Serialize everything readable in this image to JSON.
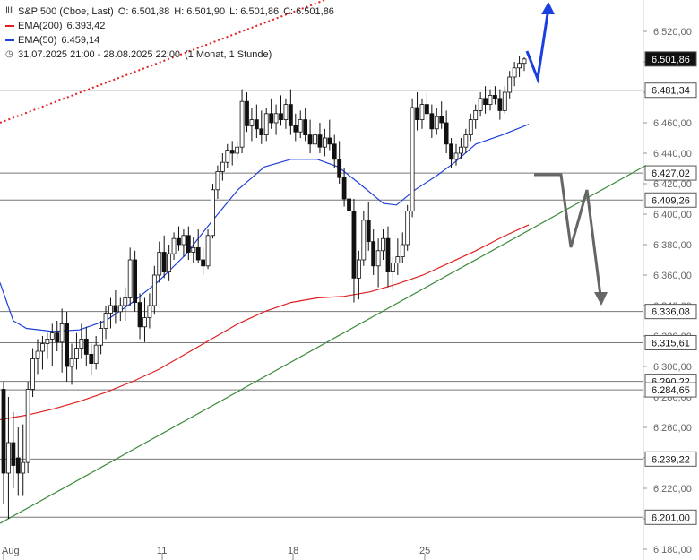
{
  "chart_data": {
    "type": "candlestick",
    "title": "S&P 500 (Cboe, Last)",
    "ohlc_header": {
      "open_label": "O:",
      "open": "6.501,88",
      "high_label": "H:",
      "high": "6.501,90",
      "low_label": "L:",
      "low": "6.501,86",
      "close_label": "C:",
      "close": "6.501,86"
    },
    "indicators": [
      {
        "name": "EMA(200)",
        "value": "6.393,42",
        "color": "#e02020"
      },
      {
        "name": "EMA(50)",
        "value": "6.459,14",
        "color": "#2040d8"
      }
    ],
    "range_label": "31.07.2025 21:00 - 28.08.2025 22:00",
    "interval_label": "(1 Monat, 1 Stunde)",
    "ylim": [
      6180,
      6540
    ],
    "y_ticks": [
      "6.520,00",
      "6.500,00",
      "6.480,00",
      "6.460,00",
      "6.440,00",
      "6.420,00",
      "6.400,00",
      "6.380,00",
      "6.360,00",
      "6.340,00",
      "6.320,00",
      "6.300,00",
      "6.280,00",
      "6.260,00",
      "6.240,00",
      "6.220,00",
      "6.200,00",
      "6.180,00"
    ],
    "y_tick_values": [
      6520,
      6500,
      6480,
      6460,
      6440,
      6420,
      6400,
      6380,
      6360,
      6340,
      6320,
      6300,
      6280,
      6260,
      6240,
      6220,
      6200,
      6180
    ],
    "x_ticks": [
      {
        "label": "Aug",
        "x": 0
      },
      {
        "label": "11",
        "x": 62
      },
      {
        "label": "18",
        "x": 112
      },
      {
        "label": "25",
        "x": 162
      }
    ],
    "levels": [
      {
        "label": "6.501,86",
        "value": 6501.86,
        "line": false,
        "dark": true
      },
      {
        "label": "6.481,34",
        "value": 6481.34,
        "line": true
      },
      {
        "label": "6.427,02",
        "value": 6427.02,
        "line": true
      },
      {
        "label": "6.409,26",
        "value": 6409.26,
        "line": true
      },
      {
        "label": "6.336,08",
        "value": 6336.08,
        "line": true
      },
      {
        "label": "6.315,61",
        "value": 6315.61,
        "line": true
      },
      {
        "label": "6.290,22",
        "value": 6290.22,
        "line": true
      },
      {
        "label": "6.284,65",
        "value": 6284.65,
        "line": true
      },
      {
        "label": "6.239,22",
        "value": 6239.22,
        "line": true
      },
      {
        "label": "6.201,00",
        "value": 6201,
        "line": true
      }
    ],
    "trendlines": [
      {
        "name": "support",
        "color": "#3a8a3a",
        "dashed": false,
        "points": [
          [
            0,
            6197
          ],
          [
            245,
            6432
          ]
        ]
      },
      {
        "name": "resistance",
        "color": "#e02020",
        "dashed": true,
        "points": [
          [
            0,
            6460
          ],
          [
            130,
            6545
          ]
        ]
      }
    ],
    "ema200": [
      [
        0,
        6265
      ],
      [
        10,
        6268
      ],
      [
        20,
        6272
      ],
      [
        30,
        6277
      ],
      [
        40,
        6283
      ],
      [
        50,
        6290
      ],
      [
        60,
        6298
      ],
      [
        70,
        6308
      ],
      [
        80,
        6318
      ],
      [
        90,
        6328
      ],
      [
        100,
        6336
      ],
      [
        110,
        6342
      ],
      [
        120,
        6345
      ],
      [
        130,
        6346
      ],
      [
        140,
        6349
      ],
      [
        150,
        6354
      ],
      [
        160,
        6360
      ],
      [
        170,
        6368
      ],
      [
        180,
        6376
      ],
      [
        190,
        6385
      ],
      [
        200,
        6393
      ]
    ],
    "ema50": [
      [
        0,
        6355
      ],
      [
        5,
        6330
      ],
      [
        10,
        6325
      ],
      [
        20,
        6323
      ],
      [
        30,
        6324
      ],
      [
        40,
        6330
      ],
      [
        50,
        6342
      ],
      [
        60,
        6356
      ],
      [
        70,
        6373
      ],
      [
        80,
        6395
      ],
      [
        90,
        6416
      ],
      [
        100,
        6431
      ],
      [
        110,
        6436
      ],
      [
        120,
        6436
      ],
      [
        128,
        6431
      ],
      [
        136,
        6420
      ],
      [
        145,
        6407
      ],
      [
        150,
        6406
      ],
      [
        157,
        6416
      ],
      [
        165,
        6425
      ],
      [
        172,
        6434
      ],
      [
        180,
        6446
      ],
      [
        190,
        6452
      ],
      [
        200,
        6459
      ]
    ],
    "candles": [
      [
        0,
        6285,
        6290,
        6210,
        6230
      ],
      [
        1,
        6230,
        6280,
        6200,
        6250
      ],
      [
        2,
        6250,
        6270,
        6220,
        6235
      ],
      [
        3,
        6240,
        6260,
        6215,
        6230
      ],
      [
        4,
        6230,
        6262,
        6215,
        6237
      ],
      [
        5,
        6237,
        6290,
        6230,
        6285
      ],
      [
        6,
        6285,
        6312,
        6280,
        6305
      ],
      [
        7,
        6305,
        6318,
        6295,
        6310
      ],
      [
        8,
        6310,
        6320,
        6298,
        6315
      ],
      [
        9,
        6315,
        6322,
        6305,
        6318
      ],
      [
        10,
        6318,
        6328,
        6300,
        6322
      ],
      [
        11,
        6322,
        6330,
        6310,
        6316
      ],
      [
        12,
        6316,
        6338,
        6296,
        6328
      ],
      [
        13,
        6328,
        6336,
        6290,
        6300
      ],
      [
        14,
        6300,
        6315,
        6288,
        6305
      ],
      [
        15,
        6305,
        6322,
        6298,
        6312
      ],
      [
        16,
        6312,
        6328,
        6305,
        6318
      ],
      [
        17,
        6318,
        6326,
        6300,
        6308
      ],
      [
        18,
        6308,
        6315,
        6294,
        6302
      ],
      [
        19,
        6302,
        6320,
        6298,
        6314
      ],
      [
        20,
        6314,
        6330,
        6308,
        6325
      ],
      [
        21,
        6325,
        6340,
        6318,
        6335
      ],
      [
        22,
        6335,
        6345,
        6325,
        6340
      ],
      [
        23,
        6340,
        6350,
        6328,
        6336
      ],
      [
        24,
        6336,
        6345,
        6330,
        6340
      ],
      [
        25,
        6340,
        6352,
        6330,
        6345
      ],
      [
        26,
        6345,
        6378,
        6340,
        6370
      ],
      [
        27,
        6370,
        6376,
        6336,
        6342
      ],
      [
        28,
        6342,
        6348,
        6318,
        6326
      ],
      [
        29,
        6326,
        6345,
        6316,
        6332
      ],
      [
        30,
        6332,
        6348,
        6325,
        6340
      ],
      [
        31,
        6340,
        6366,
        6334,
        6360
      ],
      [
        32,
        6360,
        6382,
        6355,
        6375
      ],
      [
        33,
        6375,
        6386,
        6358,
        6362
      ],
      [
        34,
        6362,
        6380,
        6356,
        6374
      ],
      [
        35,
        6374,
        6388,
        6370,
        6384
      ],
      [
        36,
        6384,
        6392,
        6376,
        6380
      ],
      [
        37,
        6380,
        6390,
        6372,
        6386
      ],
      [
        38,
        6386,
        6392,
        6370,
        6375
      ],
      [
        39,
        6375,
        6385,
        6368,
        6378
      ],
      [
        40,
        6378,
        6390,
        6368,
        6370
      ],
      [
        41,
        6370,
        6378,
        6360,
        6366
      ],
      [
        42,
        6366,
        6390,
        6364,
        6386
      ],
      [
        43,
        6386,
        6420,
        6384,
        6416
      ],
      [
        44,
        6416,
        6432,
        6410,
        6428
      ],
      [
        45,
        6428,
        6440,
        6422,
        6434
      ],
      [
        46,
        6434,
        6446,
        6430,
        6442
      ],
      [
        47,
        6442,
        6448,
        6432,
        6440
      ],
      [
        48,
        6440,
        6448,
        6436,
        6444
      ],
      [
        49,
        6444,
        6482,
        6440,
        6474
      ],
      [
        50,
        6474,
        6480,
        6454,
        6458
      ],
      [
        51,
        6458,
        6470,
        6448,
        6462
      ],
      [
        52,
        6462,
        6472,
        6450,
        6456
      ],
      [
        53,
        6456,
        6468,
        6446,
        6452
      ],
      [
        54,
        6452,
        6470,
        6448,
        6466
      ],
      [
        55,
        6466,
        6476,
        6456,
        6460
      ],
      [
        56,
        6460,
        6472,
        6452,
        6466
      ],
      [
        57,
        6466,
        6478,
        6458,
        6462
      ],
      [
        58,
        6462,
        6476,
        6456,
        6472
      ],
      [
        59,
        6472,
        6482,
        6452,
        6458
      ],
      [
        60,
        6458,
        6466,
        6448,
        6454
      ],
      [
        61,
        6454,
        6468,
        6450,
        6462
      ],
      [
        62,
        6462,
        6470,
        6448,
        6452
      ],
      [
        63,
        6452,
        6462,
        6440,
        6446
      ],
      [
        64,
        6446,
        6458,
        6442,
        6452
      ],
      [
        65,
        6452,
        6460,
        6440,
        6444
      ],
      [
        66,
        6444,
        6456,
        6438,
        6450
      ],
      [
        67,
        6450,
        6462,
        6442,
        6446
      ],
      [
        68,
        6446,
        6452,
        6430,
        6436
      ],
      [
        69,
        6436,
        6448,
        6420,
        6424
      ],
      [
        70,
        6424,
        6430,
        6405,
        6410
      ],
      [
        71,
        6410,
        6420,
        6398,
        6402
      ],
      [
        72,
        6402,
        6410,
        6342,
        6358
      ],
      [
        73,
        6358,
        6376,
        6344,
        6370
      ],
      [
        74,
        6370,
        6402,
        6366,
        6396
      ],
      [
        75,
        6396,
        6408,
        6376,
        6382
      ],
      [
        76,
        6382,
        6390,
        6360,
        6366
      ],
      [
        77,
        6366,
        6384,
        6352,
        6376
      ],
      [
        78,
        6376,
        6390,
        6370,
        6384
      ],
      [
        79,
        6384,
        6392,
        6352,
        6362
      ],
      [
        80,
        6362,
        6372,
        6350,
        6368
      ],
      [
        81,
        6368,
        6384,
        6360,
        6372
      ],
      [
        82,
        6372,
        6388,
        6368,
        6380
      ],
      [
        83,
        6380,
        6406,
        6376,
        6402
      ],
      [
        84,
        6402,
        6476,
        6398,
        6470
      ],
      [
        85,
        6470,
        6480,
        6455,
        6462
      ],
      [
        86,
        6462,
        6476,
        6456,
        6472
      ],
      [
        87,
        6472,
        6480,
        6462,
        6466
      ],
      [
        88,
        6466,
        6472,
        6450,
        6456
      ],
      [
        89,
        6456,
        6470,
        6452,
        6464
      ],
      [
        90,
        6464,
        6474,
        6456,
        6460
      ],
      [
        91,
        6460,
        6468,
        6440,
        6446
      ],
      [
        92,
        6446,
        6450,
        6430,
        6436
      ],
      [
        93,
        6436,
        6446,
        6432,
        6440
      ],
      [
        94,
        6440,
        6450,
        6436,
        6444
      ],
      [
        95,
        6444,
        6456,
        6440,
        6452
      ],
      [
        96,
        6452,
        6466,
        6448,
        6462
      ],
      [
        97,
        6462,
        6472,
        6456,
        6468
      ],
      [
        98,
        6468,
        6480,
        6464,
        6476
      ],
      [
        99,
        6476,
        6484,
        6466,
        6472
      ],
      [
        100,
        6472,
        6482,
        6468,
        6478
      ],
      [
        101,
        6478,
        6484,
        6472,
        6476
      ],
      [
        102,
        6476,
        6482,
        6462,
        6468
      ],
      [
        103,
        6468,
        6484,
        6466,
        6480
      ],
      [
        104,
        6480,
        6494,
        6476,
        6490
      ],
      [
        105,
        6490,
        6500,
        6484,
        6496
      ],
      [
        106,
        6496,
        6504,
        6490,
        6499
      ],
      [
        107,
        6499,
        6503,
        6494,
        6501.86
      ]
    ],
    "candle_x_range": [
      0,
      107
    ],
    "candle_day_range": [
      0,
      200
    ]
  }
}
